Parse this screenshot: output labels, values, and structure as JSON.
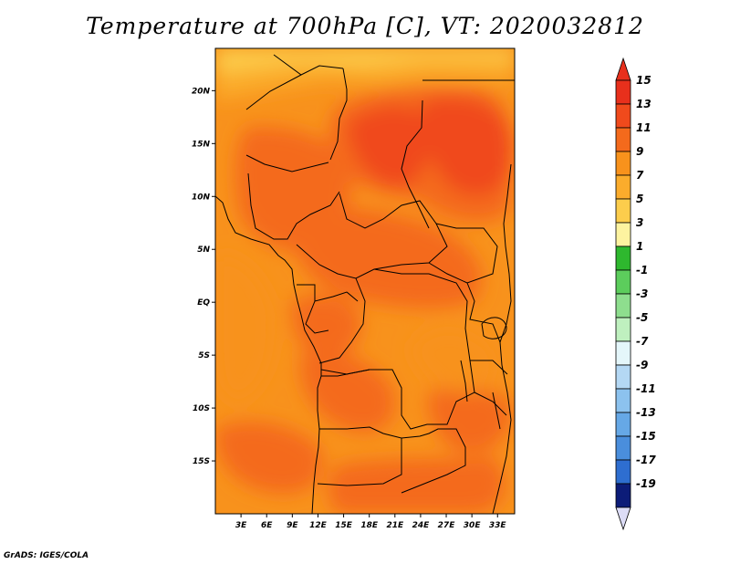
{
  "title": "Temperature at 700hPa [C], VT: 2020032812",
  "credit": "GrADS: IGES/COLA",
  "map": {
    "lon_range": [
      0,
      35
    ],
    "lat_range": [
      -20,
      24
    ],
    "lon_ticks": [
      {
        "value": 3,
        "label": "3E"
      },
      {
        "value": 6,
        "label": "6E"
      },
      {
        "value": 9,
        "label": "9E"
      },
      {
        "value": 12,
        "label": "12E"
      },
      {
        "value": 15,
        "label": "15E"
      },
      {
        "value": 18,
        "label": "18E"
      },
      {
        "value": 21,
        "label": "21E"
      },
      {
        "value": 24,
        "label": "24E"
      },
      {
        "value": 27,
        "label": "27E"
      },
      {
        "value": 30,
        "label": "30E"
      },
      {
        "value": 33,
        "label": "33E"
      }
    ],
    "lat_ticks": [
      {
        "value": 20,
        "label": "20N"
      },
      {
        "value": 15,
        "label": "15N"
      },
      {
        "value": 10,
        "label": "10N"
      },
      {
        "value": 5,
        "label": "5N"
      },
      {
        "value": 0,
        "label": "EQ"
      },
      {
        "value": -5,
        "label": "5S"
      },
      {
        "value": -10,
        "label": "10S"
      },
      {
        "value": -15,
        "label": "15S"
      }
    ]
  },
  "colorbar": {
    "levels": [
      {
        "label": "15",
        "color": "#e8301c"
      },
      {
        "label": "13",
        "color": "#f04a1c"
      },
      {
        "label": "11",
        "color": "#f46a1c"
      },
      {
        "label": "9",
        "color": "#f8921c"
      },
      {
        "label": "7",
        "color": "#fbac2c"
      },
      {
        "label": "5",
        "color": "#fccd4c"
      },
      {
        "label": "3",
        "color": "#fdf3a0"
      },
      {
        "label": "1",
        "color": "#2eb82e"
      },
      {
        "label": "-1",
        "color": "#5ccd5c"
      },
      {
        "label": "-3",
        "color": "#8ede8e"
      },
      {
        "label": "-5",
        "color": "#bff0bf"
      },
      {
        "label": "-7",
        "color": "#e4f6fa"
      },
      {
        "label": "-9",
        "color": "#b4d8f4"
      },
      {
        "label": "-11",
        "color": "#8cc2ee"
      },
      {
        "label": "-13",
        "color": "#66a8e6"
      },
      {
        "label": "-15",
        "color": "#4a8edc"
      },
      {
        "label": "-17",
        "color": "#2e6ed0"
      },
      {
        "label": "-19",
        "color": "#1e4ec0"
      }
    ],
    "min_color": "#0c1c78",
    "bottom_cap_color": "#dcdcf6"
  }
}
